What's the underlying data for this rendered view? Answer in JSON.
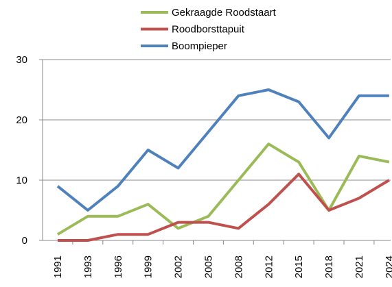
{
  "chart_data": {
    "type": "line",
    "categories": [
      "1991",
      "1993",
      "1996",
      "1999",
      "2002",
      "2005",
      "2008",
      "2012",
      "2015",
      "2018",
      "2021",
      "2024"
    ],
    "series": [
      {
        "name": "Gekraagde Roodstaart",
        "color": "#9bbb59",
        "values": [
          1,
          4,
          4,
          6,
          2,
          4,
          10,
          16,
          13,
          5,
          14,
          13
        ]
      },
      {
        "name": "Roodborsttapuit",
        "color": "#c0504d",
        "values": [
          0,
          0,
          1,
          1,
          3,
          3,
          2,
          6,
          11,
          5,
          7,
          10
        ]
      },
      {
        "name": "Boompieper",
        "color": "#4f81bd",
        "values": [
          9,
          5,
          9,
          15,
          12,
          18,
          24,
          25,
          23,
          17,
          24,
          24
        ]
      }
    ],
    "ylim": [
      0,
      30
    ],
    "yticks": [
      0,
      10,
      20,
      30
    ],
    "grid": true,
    "legend": "top"
  }
}
